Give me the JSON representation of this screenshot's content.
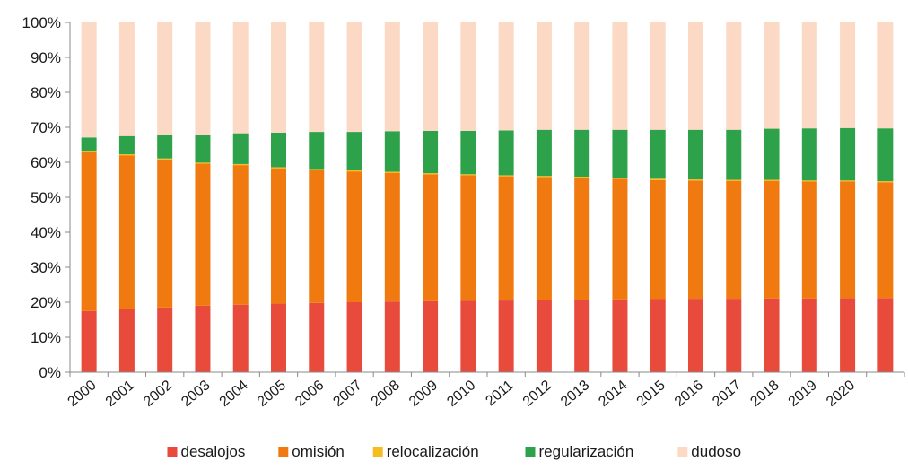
{
  "chart_data": {
    "type": "bar",
    "stacked": true,
    "percent": true,
    "categories": [
      "2000",
      "2001",
      "2002",
      "2003",
      "2004",
      "2005",
      "2006",
      "2007",
      "2008",
      "2009",
      "2010",
      "2011",
      "2012",
      "2013",
      "2014",
      "2015",
      "2016",
      "2017",
      "2018",
      "2019",
      "2020",
      ""
    ],
    "x_tick_labels": [
      "2000",
      "2001",
      "2002",
      "2003",
      "2004",
      "2005",
      "2006",
      "2007",
      "2008",
      "2009",
      "2010",
      "2011",
      "2012",
      "2013",
      "2014",
      "2015",
      "2016",
      "2017",
      "2018",
      "2019",
      "2020"
    ],
    "ylim": [
      0,
      100
    ],
    "y_tick_labels": [
      "0%",
      "10%",
      "20%",
      "30%",
      "40%",
      "50%",
      "60%",
      "70%",
      "80%",
      "90%",
      "100%"
    ],
    "grid": false,
    "legend_position": "bottom",
    "series": [
      {
        "name": "desalojos",
        "color": "#e84a3c",
        "values": [
          17.5,
          18,
          18.5,
          19,
          19.3,
          19.6,
          19.8,
          20,
          20.2,
          20.3,
          20.4,
          20.5,
          20.6,
          20.7,
          20.8,
          20.9,
          21,
          21,
          21.1,
          21.1,
          21.2,
          21.2
        ]
      },
      {
        "name": "omisión",
        "color": "#f07a10",
        "values": [
          45.5,
          44,
          42.3,
          40.6,
          39.9,
          38.7,
          38,
          37.4,
          36.8,
          36.3,
          35.9,
          35.5,
          35.2,
          34.9,
          34.5,
          34,
          33.8,
          33.7,
          33.6,
          33.4,
          33.3,
          33.1
        ]
      },
      {
        "name": "relocalización",
        "color": "#f5bd1f",
        "values": [
          0.3,
          0.3,
          0.3,
          0.3,
          0.3,
          0.3,
          0.3,
          0.3,
          0.3,
          0.3,
          0.3,
          0.3,
          0.3,
          0.3,
          0.3,
          0.4,
          0.3,
          0.3,
          0.3,
          0.3,
          0.3,
          0.3
        ]
      },
      {
        "name": "regularización",
        "color": "#2ea24b",
        "values": [
          3.8,
          5.2,
          6.7,
          8,
          8.8,
          9.9,
          10.6,
          11,
          11.6,
          12.1,
          12.4,
          12.8,
          13.2,
          13.4,
          13.7,
          14,
          14.2,
          14.3,
          14.6,
          14.9,
          15,
          15.1
        ]
      },
      {
        "name": "dudoso",
        "color": "#fbd9c4",
        "values": [
          32.9,
          32.5,
          32.2,
          32.1,
          31.7,
          31.5,
          31.3,
          31.3,
          31.1,
          31,
          31,
          30.9,
          30.7,
          30.7,
          30.7,
          30.7,
          30.7,
          30.7,
          30.4,
          30.3,
          30.2,
          30.3
        ]
      }
    ]
  }
}
